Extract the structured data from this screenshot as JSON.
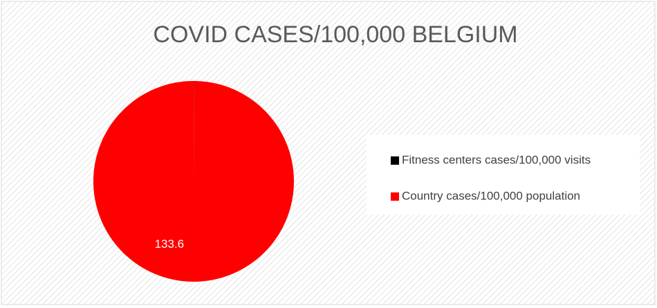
{
  "chart_data": {
    "type": "pie",
    "title": "COVID CASES/100,000 BELGIUM",
    "categories": [
      "Fitness centers cases/100,000 visits",
      "Country cases/100,000 population"
    ],
    "values": [
      0.0486,
      133.6
    ],
    "colors": [
      "#000000",
      "#ff0000"
    ],
    "legend": "right"
  }
}
